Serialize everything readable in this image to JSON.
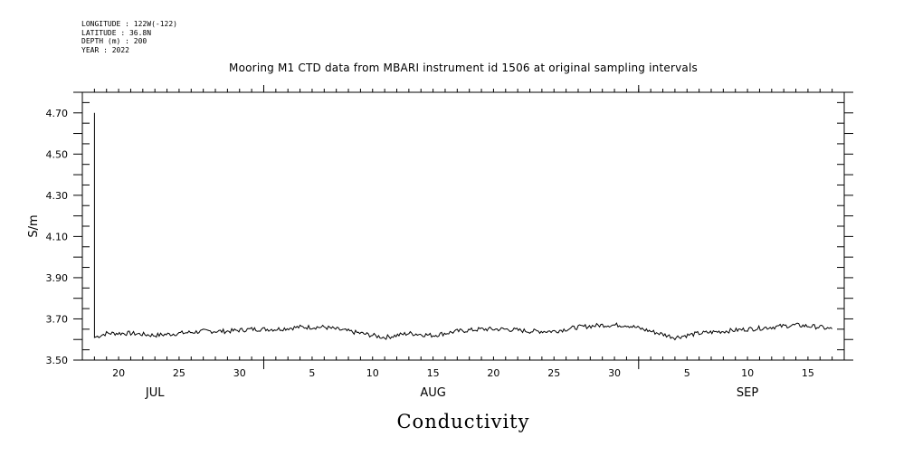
{
  "header": {
    "longitude": "LONGITUDE : 122W(-122)",
    "latitude": "LATITUDE : 36.8N",
    "depth": "DEPTH (m) : 200",
    "year": "YEAR : 2022"
  },
  "chart_data": {
    "type": "line",
    "title": "Mooring M1 CTD data from MBARI instrument id 1506 at original sampling intervals",
    "xlabel": "Conductivity",
    "ylabel": "S/m",
    "ylim": [
      3.5,
      4.8
    ],
    "xlim": [
      "2022-07-17",
      "2022-09-18"
    ],
    "y_ticks": [
      "3.50",
      "3.70",
      "3.90",
      "4.10",
      "4.30",
      "4.50",
      "4.70"
    ],
    "x_tick_labels": [
      {
        "date": "2022-07-20",
        "label": "20"
      },
      {
        "date": "2022-07-25",
        "label": "25"
      },
      {
        "date": "2022-07-30",
        "label": "30"
      },
      {
        "date": "2022-08-05",
        "label": "5"
      },
      {
        "date": "2022-08-10",
        "label": "10"
      },
      {
        "date": "2022-08-15",
        "label": "15"
      },
      {
        "date": "2022-08-20",
        "label": "20"
      },
      {
        "date": "2022-08-25",
        "label": "25"
      },
      {
        "date": "2022-08-30",
        "label": "30"
      },
      {
        "date": "2022-09-05",
        "label": "5"
      },
      {
        "date": "2022-09-10",
        "label": "10"
      },
      {
        "date": "2022-09-15",
        "label": "15"
      }
    ],
    "month_labels": [
      {
        "date": "2022-07-23",
        "label": "JUL"
      },
      {
        "date": "2022-08-15",
        "label": "AUG"
      },
      {
        "date": "2022-09-10",
        "label": "SEP"
      }
    ],
    "series": [
      {
        "x": [
          "2022-07-18",
          "2022-07-18",
          "2022-07-19",
          "2022-07-21",
          "2022-07-23",
          "2022-07-25",
          "2022-07-27",
          "2022-07-29",
          "2022-07-31",
          "2022-08-02",
          "2022-08-04",
          "2022-08-06",
          "2022-08-08",
          "2022-08-10",
          "2022-08-11",
          "2022-08-13",
          "2022-08-15",
          "2022-08-17",
          "2022-08-19",
          "2022-08-21",
          "2022-08-23",
          "2022-08-25",
          "2022-08-27",
          "2022-08-29",
          "2022-08-31",
          "2022-09-02",
          "2022-09-04",
          "2022-09-06",
          "2022-09-08",
          "2022-09-10",
          "2022-09-12",
          "2022-09-14",
          "2022-09-16",
          "2022-09-17"
        ],
        "y": [
          4.7,
          3.61,
          3.63,
          3.63,
          3.62,
          3.63,
          3.64,
          3.64,
          3.65,
          3.65,
          3.66,
          3.66,
          3.64,
          3.62,
          3.61,
          3.63,
          3.62,
          3.64,
          3.65,
          3.65,
          3.64,
          3.64,
          3.66,
          3.67,
          3.67,
          3.64,
          3.61,
          3.63,
          3.64,
          3.65,
          3.66,
          3.67,
          3.66,
          3.65
        ]
      }
    ],
    "grid": false
  }
}
